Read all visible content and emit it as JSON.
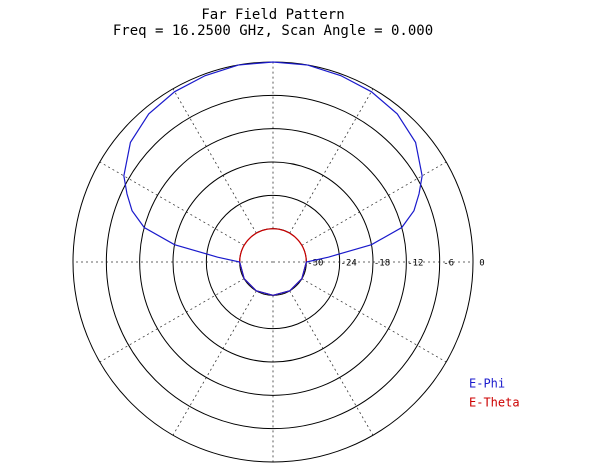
{
  "chart_data": {
    "type": "polar",
    "title": "Far Field Pattern",
    "subtitle": "Freq = 16.2500 GHz, Scan Angle = 0.000",
    "x": [
      -180,
      -150,
      -120,
      -90,
      -85,
      -80,
      -75,
      -70,
      -65,
      -60,
      -50,
      -40,
      -30,
      -20,
      -10,
      0,
      10,
      20,
      30,
      40,
      50,
      60,
      65,
      70,
      75,
      80,
      85,
      90,
      120,
      150,
      180
    ],
    "series": [
      {
        "name": "E-Theta",
        "color": "#cc0000",
        "values": [
          -30,
          -30,
          -30,
          -30,
          -30,
          -30,
          -30,
          -30,
          -30,
          -30,
          -30,
          -30,
          -30,
          -30,
          -30,
          -30,
          -30,
          -30,
          -30,
          -30,
          -30,
          -30,
          -30,
          -30,
          -30,
          -30,
          -30,
          -30,
          -30,
          -30,
          -30
        ]
      },
      {
        "name": "E-Phi",
        "color": "#1a1acc",
        "values": [
          -30,
          -30,
          -30,
          -30,
          -26,
          -18,
          -12,
          -9,
          -7,
          -5,
          -2.5,
          -1.2,
          -0.6,
          -0.3,
          0,
          0,
          0,
          -0.3,
          -0.6,
          -1.2,
          -2.5,
          -5,
          -7,
          -9,
          -12,
          -18,
          -26,
          -30,
          -30,
          -30,
          -30
        ]
      }
    ],
    "rlim": [
      -36,
      0
    ],
    "rticks": [
      -30,
      -24,
      -18,
      -12,
      -6,
      0
    ],
    "angle_grid": [
      0,
      30,
      60,
      90,
      120,
      150,
      180,
      210,
      240,
      270,
      300,
      330
    ],
    "legend": "lower right"
  }
}
